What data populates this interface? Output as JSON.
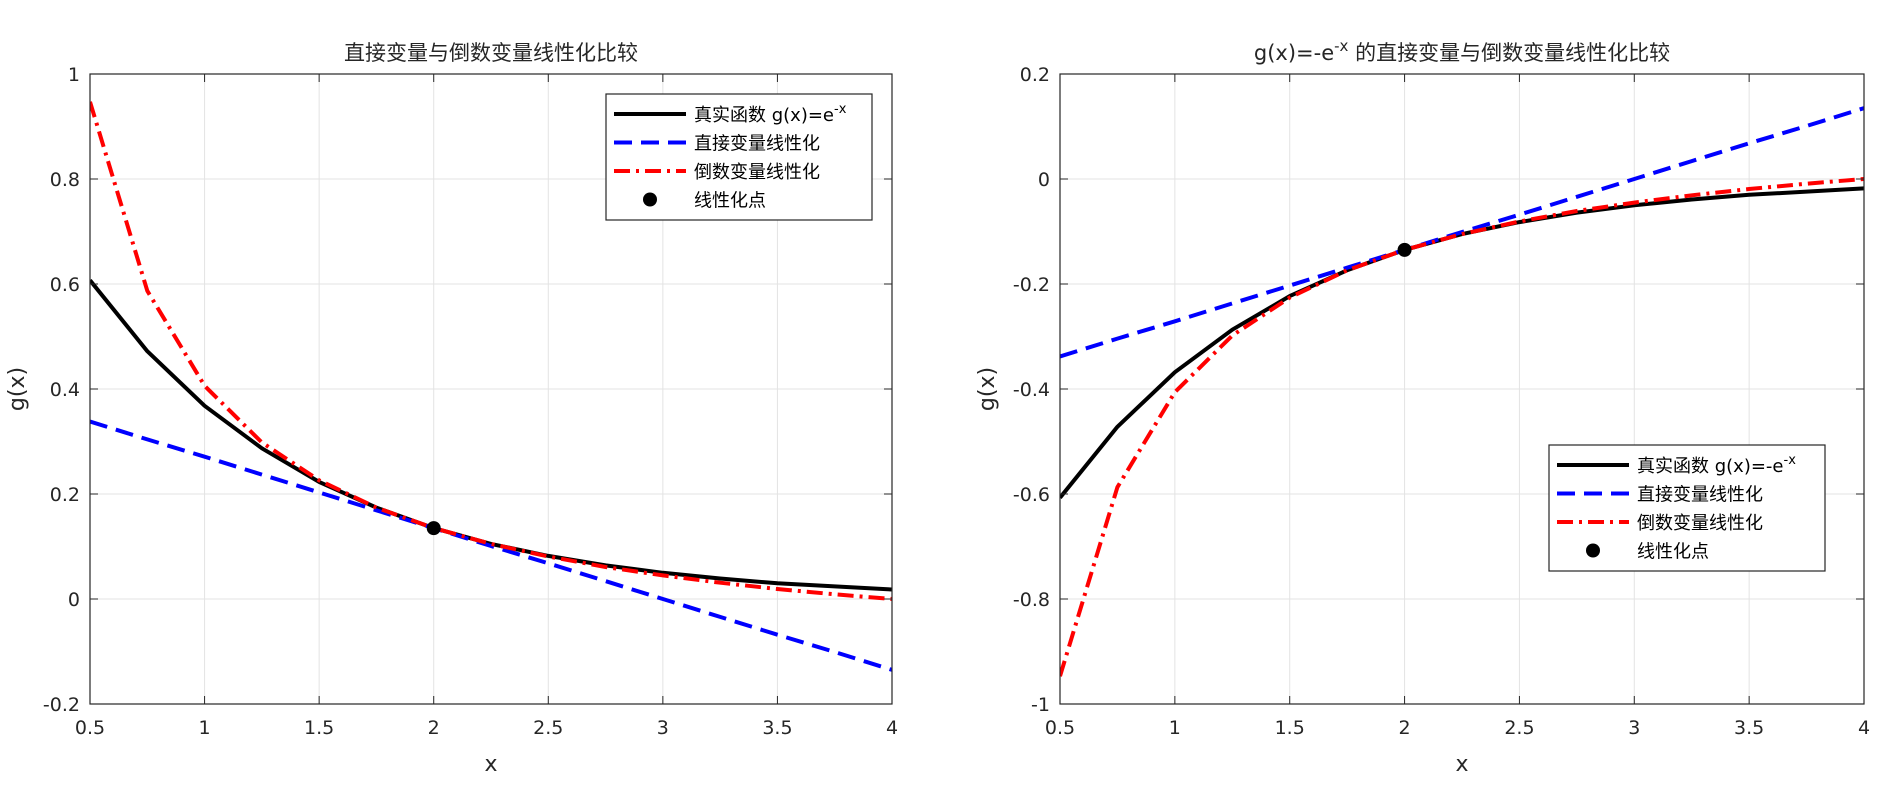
{
  "chart_data": [
    {
      "type": "line",
      "title": "直接变量与倒数变量线性化比较",
      "title_superscript": "",
      "title_suffix": "",
      "xlabel": "x",
      "ylabel": "g(x)",
      "xlim": [
        0.5,
        4
      ],
      "ylim": [
        -0.2,
        1
      ],
      "xticks": [
        0.5,
        1,
        1.5,
        2,
        2.5,
        3,
        3.5,
        4
      ],
      "xtick_labels": [
        "0.5",
        "1",
        "1.5",
        "2",
        "2.5",
        "3",
        "3.5",
        "4"
      ],
      "yticks": [
        -0.2,
        0,
        0.2,
        0.4,
        0.6,
        0.8,
        1
      ],
      "ytick_labels": [
        "-0.2",
        "0",
        "0.2",
        "0.4",
        "0.6",
        "0.8",
        "1"
      ],
      "grid": true,
      "legend_position": "top-right",
      "x": [
        0.5,
        0.75,
        1,
        1.25,
        1.5,
        1.75,
        2,
        2.25,
        2.5,
        2.75,
        3,
        3.25,
        3.5,
        3.75,
        4
      ],
      "series": [
        {
          "name": "真实函数 g(x)=e",
          "name_superscript": "-x",
          "style": "solid",
          "color": "#000000",
          "values": [
            0.607,
            0.472,
            0.368,
            0.287,
            0.223,
            0.174,
            0.135,
            0.105,
            0.082,
            0.064,
            0.05,
            0.039,
            0.03,
            0.024,
            0.018
          ]
        },
        {
          "name": "直接变量线性化",
          "name_superscript": "",
          "style": "dashed",
          "color": "#0000ff",
          "values": [
            0.338,
            0.304,
            0.271,
            0.237,
            0.203,
            0.169,
            0.135,
            0.101,
            0.068,
            0.034,
            0.0,
            -0.034,
            -0.068,
            -0.101,
            -0.135
          ]
        },
        {
          "name": "倒数变量线性化",
          "name_superscript": "",
          "style": "dashdot",
          "color": "#ff0000",
          "values": [
            0.947,
            0.587,
            0.406,
            0.298,
            0.226,
            0.174,
            0.135,
            0.105,
            0.081,
            0.061,
            0.045,
            0.031,
            0.019,
            0.009,
            0.0
          ]
        }
      ],
      "points": [
        {
          "name": "线性化点",
          "x": 2,
          "y": 0.135,
          "color": "#000000"
        }
      ]
    },
    {
      "type": "line",
      "title": "g(x)=-e",
      "title_superscript": "-x",
      "title_suffix": " 的直接变量与倒数变量线性化比较",
      "xlabel": "x",
      "ylabel": "g(x)",
      "xlim": [
        0.5,
        4
      ],
      "ylim": [
        -1,
        0.2
      ],
      "xticks": [
        0.5,
        1,
        1.5,
        2,
        2.5,
        3,
        3.5,
        4
      ],
      "xtick_labels": [
        "0.5",
        "1",
        "1.5",
        "2",
        "2.5",
        "3",
        "3.5",
        "4"
      ],
      "yticks": [
        -1,
        -0.8,
        -0.6,
        -0.4,
        -0.2,
        0,
        0.2
      ],
      "ytick_labels": [
        "-1",
        "-0.8",
        "-0.6",
        "-0.4",
        "-0.2",
        "0",
        "0.2"
      ],
      "grid": true,
      "legend_position": "bottom-right",
      "x": [
        0.5,
        0.75,
        1,
        1.25,
        1.5,
        1.75,
        2,
        2.25,
        2.5,
        2.75,
        3,
        3.25,
        3.5,
        3.75,
        4
      ],
      "series": [
        {
          "name": "真实函数 g(x)=-e",
          "name_superscript": "-x",
          "style": "solid",
          "color": "#000000",
          "values": [
            -0.607,
            -0.472,
            -0.368,
            -0.287,
            -0.223,
            -0.174,
            -0.135,
            -0.105,
            -0.082,
            -0.064,
            -0.05,
            -0.039,
            -0.03,
            -0.024,
            -0.018
          ]
        },
        {
          "name": "直接变量线性化",
          "name_superscript": "",
          "style": "dashed",
          "color": "#0000ff",
          "values": [
            -0.338,
            -0.304,
            -0.271,
            -0.237,
            -0.203,
            -0.169,
            -0.135,
            -0.101,
            -0.068,
            -0.034,
            0.0,
            0.034,
            0.068,
            0.101,
            0.135
          ]
        },
        {
          "name": "倒数变量线性化",
          "name_superscript": "",
          "style": "dashdot",
          "color": "#ff0000",
          "values": [
            -0.947,
            -0.587,
            -0.406,
            -0.298,
            -0.226,
            -0.174,
            -0.135,
            -0.105,
            -0.081,
            -0.061,
            -0.045,
            -0.031,
            -0.019,
            -0.009,
            0.0
          ]
        }
      ],
      "points": [
        {
          "name": "线性化点",
          "x": 2,
          "y": -0.135,
          "color": "#000000"
        }
      ]
    }
  ]
}
